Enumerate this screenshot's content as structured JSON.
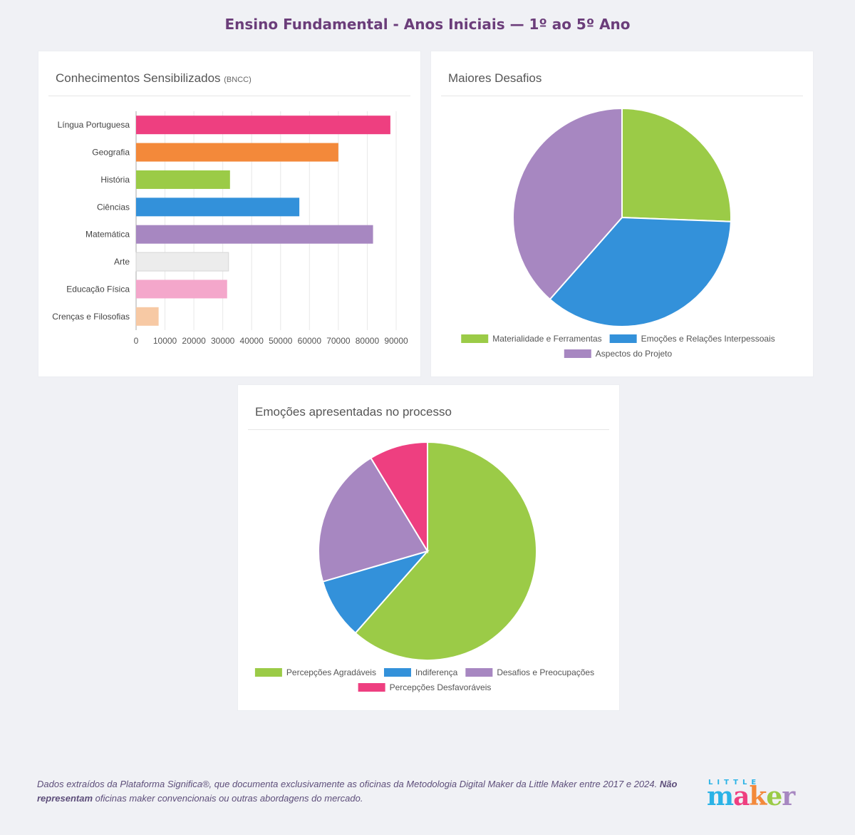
{
  "page_title": "Ensino Fundamental - Anos Iniciais — 1º ao 5º Ano",
  "chart_data": [
    {
      "type": "bar",
      "orientation": "horizontal",
      "title": "Conhecimentos Sensibilizados",
      "title_suffix": "(BNCC)",
      "categories": [
        "Língua Portuguesa",
        "Geografia",
        "História",
        "Ciências",
        "Matemática",
        "Arte",
        "Educação Física",
        "Crenças e Filosofias"
      ],
      "values": [
        88000,
        70000,
        32500,
        56500,
        82000,
        32000,
        31500,
        7800
      ],
      "colors": [
        "#ee3f80",
        "#f3893a",
        "#9bcb47",
        "#3391da",
        "#a787c1",
        "#ececec",
        "#f4a7cb",
        "#f7c9a4"
      ],
      "xlim": [
        0,
        90000
      ],
      "xticks": [
        0,
        10000,
        20000,
        30000,
        40000,
        50000,
        60000,
        70000,
        80000,
        90000
      ],
      "grid": true
    },
    {
      "type": "pie",
      "title": "Maiores Desafios",
      "labels": [
        "Materialidade e Ferramentas",
        "Emoções e Relações Interpessoais",
        "Aspectos do Projeto"
      ],
      "values": [
        25.6,
        35.9,
        38.5
      ],
      "colors": [
        "#9bcb47",
        "#3391da",
        "#a787c1"
      ],
      "legend_position": "bottom"
    },
    {
      "type": "pie",
      "title": "Emoções apresentadas no processo",
      "labels": [
        "Percepções Agradáveis",
        "Indiferença",
        "Desafios e Preocupações",
        "Percepções Desfavoráveis"
      ],
      "values": [
        61.5,
        9.0,
        20.8,
        8.7
      ],
      "colors": [
        "#9bcb47",
        "#3391da",
        "#a787c1",
        "#ee3f80"
      ],
      "legend_position": "bottom"
    }
  ],
  "footer": {
    "text_before": "Dados extraídos da Plataforma Significa®, que documenta exclusivamente as oficinas da Metodologia Digital Maker da Little Maker entre 2017 e 2024. ",
    "bold": "Não representam",
    "text_after": " oficinas maker convencionais ou outras abordagens do mercado."
  },
  "logo": {
    "top": "LITTLE",
    "letters": [
      "m",
      "a",
      "k",
      "e",
      "r"
    ],
    "letter_colors": [
      "#2bb3e6",
      "#ee3f80",
      "#f3893a",
      "#9bcb47",
      "#a787c1"
    ]
  }
}
